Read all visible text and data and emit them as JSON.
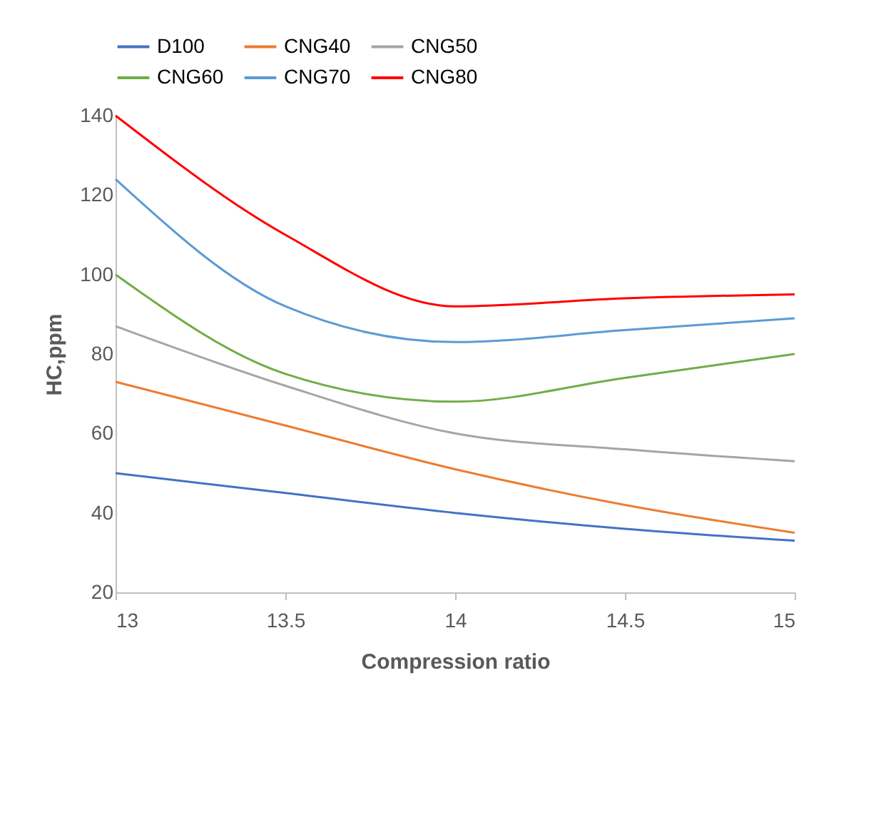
{
  "chart_data": {
    "type": "line",
    "xlabel": "Compression ratio",
    "ylabel": "HC,ppm",
    "x": [
      13,
      13.5,
      14,
      14.5,
      15
    ],
    "series": [
      {
        "name": "D100",
        "color": "#4472c4",
        "values": [
          50,
          45,
          40,
          36,
          33
        ]
      },
      {
        "name": "CNG40",
        "color": "#ed7d31",
        "values": [
          73,
          62,
          51,
          42,
          35
        ]
      },
      {
        "name": "CNG50",
        "color": "#a5a5a5",
        "values": [
          87,
          72,
          60,
          56,
          53
        ]
      },
      {
        "name": "CNG60",
        "color": "#70ad47",
        "values": [
          100,
          75,
          68,
          74,
          80
        ]
      },
      {
        "name": "CNG70",
        "color": "#5b9bd5",
        "values": [
          124,
          92,
          83,
          86,
          89
        ]
      },
      {
        "name": "CNG80",
        "color": "#ff0000",
        "values": [
          140,
          110,
          92,
          94,
          95
        ]
      }
    ],
    "xlim": [
      13,
      15
    ],
    "xticks": [
      13,
      13.5,
      14,
      14.5,
      15
    ],
    "ylim": [
      20,
      140
    ],
    "yticks": [
      20,
      40,
      60,
      80,
      100,
      120,
      140
    ],
    "grid": false,
    "legend": "top",
    "marker": "none",
    "line_style": "solid"
  }
}
